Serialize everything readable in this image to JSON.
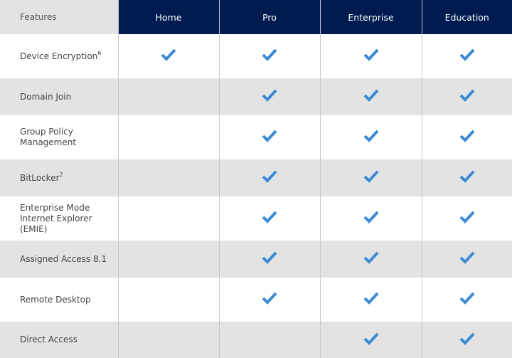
{
  "columns": [
    "Features",
    "Home",
    "Pro",
    "Enterprise",
    "Education"
  ],
  "accent_check_color": "#3a8ad6",
  "header_color": "#001b50",
  "rows": [
    {
      "feature": "Device Encryption",
      "sup": "6",
      "checks": [
        true,
        true,
        true,
        true
      ]
    },
    {
      "feature": "Domain Join",
      "sup": "",
      "checks": [
        false,
        true,
        true,
        true
      ]
    },
    {
      "feature": "Group Policy Management",
      "sup": "",
      "checks": [
        false,
        true,
        true,
        true
      ]
    },
    {
      "feature": "BitLocker",
      "sup": "2",
      "checks": [
        false,
        true,
        true,
        true
      ]
    },
    {
      "feature": "Enterprise Mode Internet Explorer (EMIE)",
      "sup": "",
      "checks": [
        false,
        true,
        true,
        true
      ]
    },
    {
      "feature": "Assigned Access 8.1",
      "sup": "",
      "checks": [
        false,
        true,
        true,
        true
      ]
    },
    {
      "feature": "Remote Desktop",
      "sup": "",
      "checks": [
        false,
        true,
        true,
        true
      ]
    },
    {
      "feature": "Direct Access",
      "sup": "",
      "checks": [
        false,
        false,
        true,
        true
      ]
    }
  ]
}
